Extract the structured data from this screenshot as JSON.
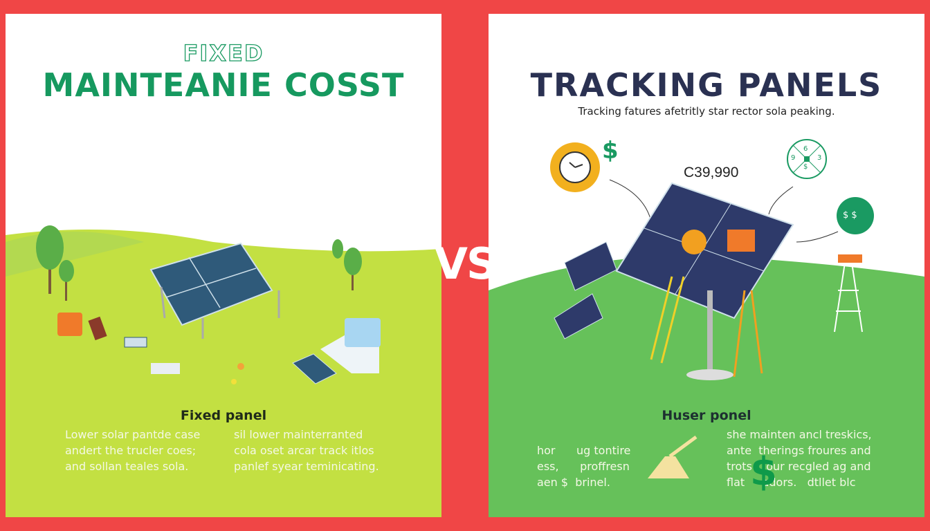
{
  "left": {
    "outline_title": "FIXED",
    "title": "MAINTEANIE COSST",
    "section_title": "Fixed panel",
    "col1": [
      "Lower solar pantde case",
      "andert the trucler coes;",
      "and sollan teales sola."
    ],
    "col2": [
      "sil lower mainterranted",
      "cola oset arcar track itlos",
      "panlef syear teminicating."
    ],
    "colors": {
      "title": "#16995f",
      "ground": "#c3e042"
    }
  },
  "vs_label": "VS",
  "right": {
    "title": "TRACKING PANELS",
    "subtitle": "Tracking fatures afetritly star rector sola peaking.",
    "price": "C39,990",
    "dollar_sign": "$",
    "compass_labels": [
      "6",
      "9",
      "3",
      "$"
    ],
    "badge_text": "$ $",
    "section_title": "Huser ponel",
    "col1": [
      "hor      ug tontire",
      "ess,      proffresn",
      "aen $  brinel."
    ],
    "col2": [
      "she mainten ancl treskics,",
      "ante  therings froures and",
      "trots    our recgled ag and",
      "flat     adors.   dtllet blc"
    ],
    "colors": {
      "title": "#2a3152",
      "ground": "#66c15a"
    }
  },
  "colors": {
    "background": "#f04646"
  }
}
